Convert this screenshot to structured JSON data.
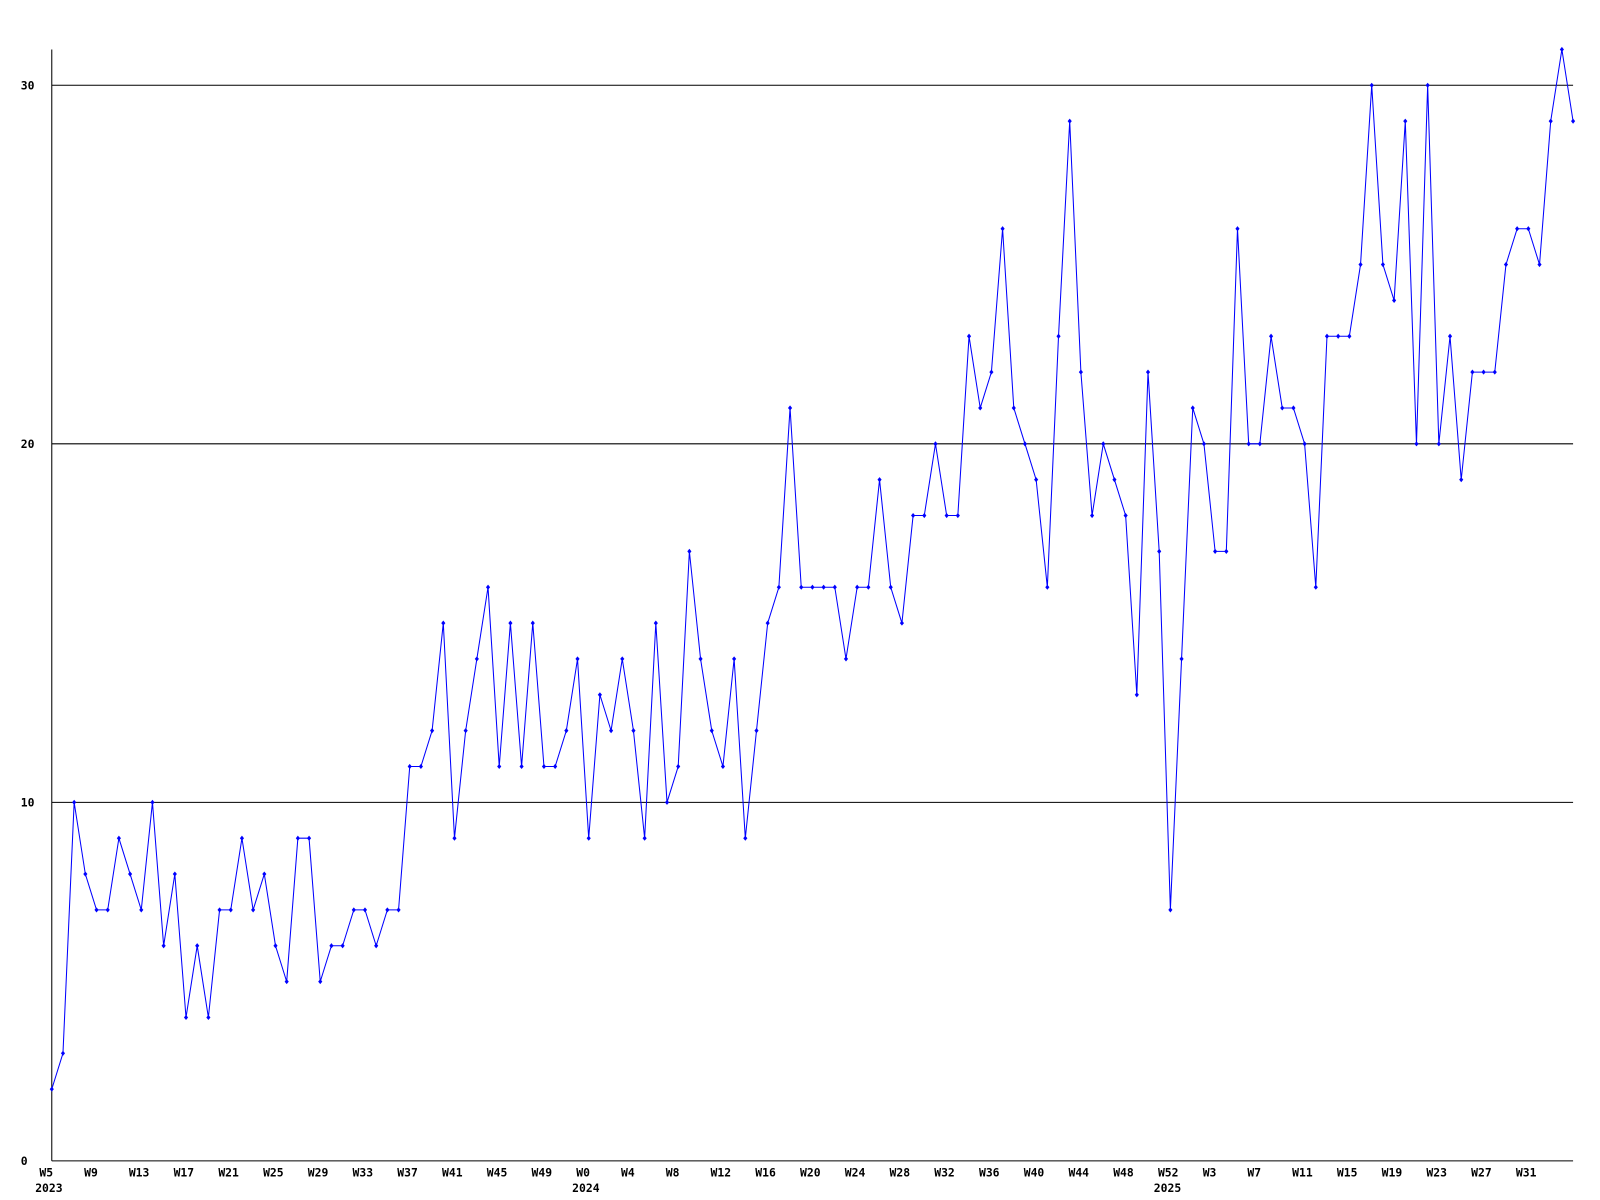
{
  "chart_data": {
    "type": "line",
    "categories": [
      "W5\n2023",
      null,
      null,
      null,
      "W9",
      null,
      null,
      null,
      "W13",
      null,
      null,
      null,
      "W17",
      null,
      null,
      null,
      "W21",
      null,
      null,
      null,
      "W25",
      null,
      null,
      null,
      "W29",
      null,
      null,
      null,
      "W33",
      null,
      null,
      null,
      "W37",
      null,
      null,
      null,
      "W41",
      null,
      null,
      null,
      "W45",
      null,
      null,
      null,
      "W49",
      null,
      null,
      null,
      "W0\n2024",
      null,
      null,
      null,
      "W4",
      null,
      null,
      null,
      "W8",
      null,
      null,
      null,
      "W12",
      null,
      null,
      null,
      "W16",
      null,
      null,
      null,
      "W20",
      null,
      null,
      null,
      "W24",
      null,
      null,
      null,
      "W28",
      null,
      null,
      null,
      "W32",
      null,
      null,
      null,
      "W36",
      null,
      null,
      null,
      "W40",
      null,
      null,
      null,
      "W44",
      null,
      null,
      null,
      "W48",
      null,
      null,
      null,
      "W52\n2025",
      null,
      null,
      null,
      "W3",
      null,
      null,
      null,
      "W7",
      null,
      null,
      null,
      "W11",
      null,
      null,
      null,
      "W15",
      null,
      null,
      null,
      "W19",
      null,
      null,
      null,
      "W23",
      null,
      null,
      null,
      "W27",
      null,
      null,
      null,
      "W31",
      null,
      null,
      null,
      null
    ],
    "series": [
      {
        "color": "#0000ff",
        "values": [
          2,
          3,
          10,
          8,
          7,
          7,
          9,
          8,
          7,
          10,
          6,
          8,
          4,
          6,
          4,
          7,
          7,
          9,
          7,
          8,
          6,
          5,
          9,
          9,
          5,
          6,
          6,
          7,
          7,
          6,
          7,
          7,
          11,
          11,
          12,
          15,
          9,
          12,
          14,
          16,
          11,
          15,
          11,
          15,
          11,
          11,
          12,
          14,
          9,
          13,
          12,
          14,
          12,
          9,
          15,
          10,
          11,
          17,
          14,
          12,
          11,
          14,
          9,
          12,
          15,
          16,
          21,
          16,
          16,
          16,
          16,
          14,
          16,
          16,
          19,
          16,
          15,
          18,
          18,
          20,
          18,
          18,
          23,
          21,
          22,
          26,
          21,
          20,
          19,
          16,
          23,
          29,
          22,
          18,
          20,
          19,
          18,
          13,
          22,
          17,
          7,
          14,
          21,
          20,
          17,
          17,
          26,
          20,
          20,
          23,
          21,
          21,
          20,
          16,
          23,
          23,
          23,
          25,
          30,
          25,
          24,
          29,
          20,
          30,
          20,
          23,
          19,
          22,
          22,
          22,
          25,
          26,
          26,
          25,
          29,
          31,
          29
        ]
      }
    ],
    "ylim": [
      0,
      31
    ],
    "yticks": [
      0,
      10,
      20,
      30
    ],
    "grid": true
  }
}
